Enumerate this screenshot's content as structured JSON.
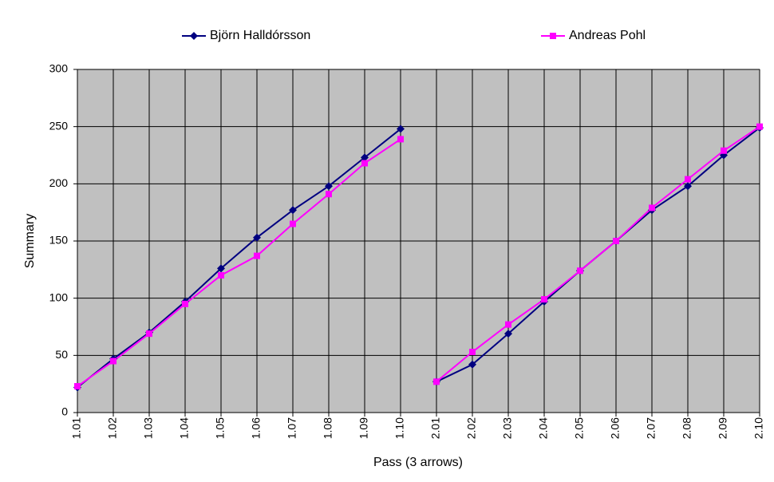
{
  "chart_data": {
    "type": "line",
    "x_label": "Pass (3 arrows)",
    "y_label": "Summary",
    "categories": [
      "1.01",
      "1.02",
      "1.03",
      "1.04",
      "1.05",
      "1.06",
      "1.07",
      "1.08",
      "1.09",
      "1.10",
      "2.01",
      "2.02",
      "2.03",
      "2.04",
      "2.05",
      "2.06",
      "2.07",
      "2.08",
      "2.09",
      "2.10"
    ],
    "breaks": [
      10
    ],
    "series": [
      {
        "name": "Björn Halldórsson",
        "color": "#000080",
        "marker": "diamond",
        "values": [
          22,
          47,
          70,
          97,
          126,
          153,
          177,
          198,
          223,
          248,
          27,
          42,
          69,
          97,
          124,
          150,
          177,
          198,
          225,
          249
        ]
      },
      {
        "name": "Andreas Pohl",
        "color": "#ff00ff",
        "marker": "square",
        "values": [
          23,
          45,
          69,
          95,
          120,
          137,
          165,
          191,
          218,
          239,
          27,
          53,
          77,
          99,
          124,
          150,
          179,
          204,
          229,
          250
        ]
      }
    ],
    "ylim": [
      0,
      300
    ],
    "yticks": [
      0,
      50,
      100,
      150,
      200,
      250,
      300
    ],
    "grid": true,
    "plot_background": "#c0c0c0",
    "legend": "top"
  }
}
